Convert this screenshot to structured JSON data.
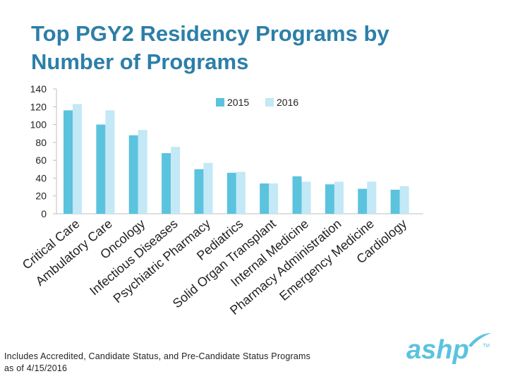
{
  "title": {
    "line1": "Top PGY2 Residency Programs by",
    "line2": "Number of Programs"
  },
  "footnote": {
    "line1": "Includes Accredited, Candidate Status, and Pre-Candidate Status Programs",
    "line2": "as of 4/15/2016"
  },
  "logo": {
    "text": "ashp",
    "tm": "TM"
  },
  "colors": {
    "title": "#2c7fa8",
    "series_2015": "#5bc3de",
    "series_2016": "#c3e8f6",
    "logo": "#5bc3de"
  },
  "chart_data": {
    "type": "bar",
    "title": "Top PGY2 Residency Programs by Number of Programs",
    "xlabel": "",
    "ylabel": "",
    "ylim": [
      0,
      140
    ],
    "yticks": [
      0,
      20,
      40,
      60,
      80,
      100,
      120,
      140
    ],
    "legend_position": "top-right",
    "categories": [
      "Critical Care",
      "Ambulatory Care",
      "Oncology",
      "Infectious Diseases",
      "Psychiatric Pharmacy",
      "Pediatrics",
      "Solid Organ Transplant",
      "Internal Medicine",
      "Pharmacy Administration",
      "Emergency Medicine",
      "Cardiology"
    ],
    "series": [
      {
        "name": "2015",
        "values": [
          116,
          100,
          88,
          68,
          50,
          46,
          34,
          42,
          33,
          28,
          27
        ]
      },
      {
        "name": "2016",
        "values": [
          123,
          116,
          94,
          75,
          57,
          47,
          34,
          36,
          36,
          36,
          31
        ]
      }
    ]
  }
}
